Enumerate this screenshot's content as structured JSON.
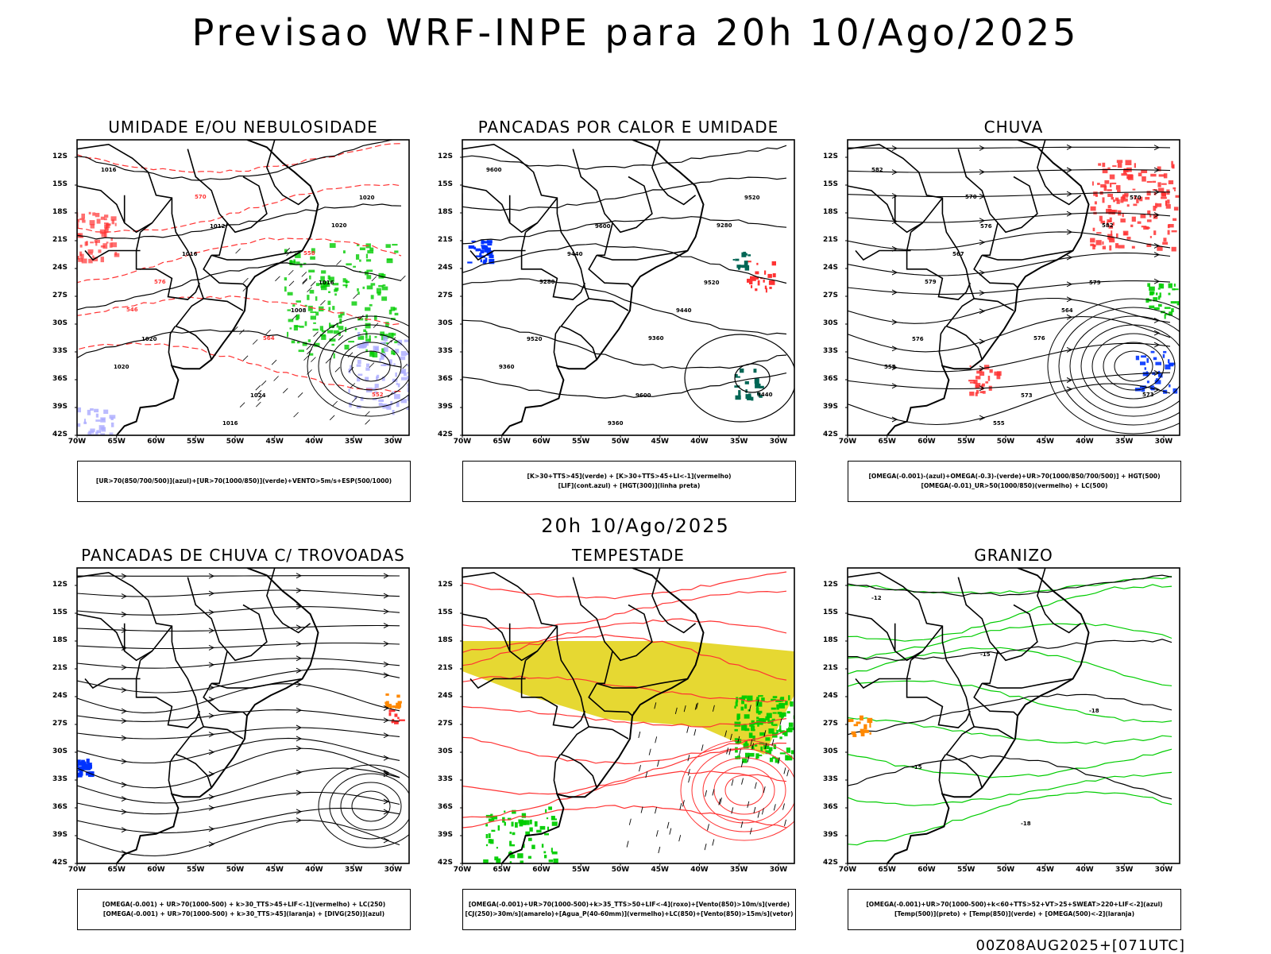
{
  "title": "Previsao WRF-INPE  para 20h 10/Ago/2025",
  "mid_title": "20h 10/Ago/2025",
  "footer": "00Z08AUG2025+[071UTC]",
  "lat_labels": [
    "12S",
    "15S",
    "18S",
    "21S",
    "24S",
    "27S",
    "30S",
    "33S",
    "36S",
    "39S",
    "42S"
  ],
  "lon_labels": [
    "70W",
    "65W",
    "60W",
    "55W",
    "50W",
    "45W",
    "40W",
    "35W",
    "30W"
  ],
  "panels": [
    {
      "id": "umidade",
      "title": "UMIDADE E/OU NEBULOSIDADE",
      "legend": [
        "[UR>70(850/700/500)](azul)+[UR>70(1000/850)](verde)+VENTO>5m/s+ESP(500/1000)"
      ],
      "contour_labels": [
        "1016",
        "1012",
        "1016",
        "1020",
        "1024",
        "1020",
        "1016",
        "1008",
        "1020",
        "1016",
        "1020",
        "576",
        "564",
        "552",
        "570",
        "558",
        "546"
      ],
      "colors": {
        "blue": "#aaaaff",
        "green": "#00cc00",
        "red": "#ff3333"
      }
    },
    {
      "id": "pancadas-calor",
      "title": "PANCADAS POR CALOR E UMIDADE",
      "legend": [
        "[K>30+TTS>45](verde) + [K>30+TTS>45+LI<-1](vermelho)",
        "[LIF](cont.azul) + [HGT(300)](linha preta)"
      ],
      "contour_labels": [
        "9600",
        "9600",
        "9520",
        "9520",
        "9600",
        "9520",
        "9440",
        "9440",
        "9360",
        "9360",
        "9280",
        "9280",
        "9360",
        "9440"
      ],
      "colors": {
        "dark_green": "#006655",
        "red": "#ff3333",
        "blue": "#0033ff"
      }
    },
    {
      "id": "chuva",
      "title": "CHUVA",
      "legend": [
        "[OMEGA(-0.001)-(azul)+OMEGA(-0.3)-(verde)+UR>70(1000/850/700/500)] + HGT(500)",
        "[OMEGA(-0.01)_UR>50(1000/850)(vermelho) + LC(500)"
      ],
      "contour_labels": [
        "582",
        "576",
        "579",
        "576",
        "573",
        "570",
        "567",
        "564",
        "558",
        "555",
        "582",
        "579",
        "576",
        "573",
        "570"
      ],
      "colors": {
        "red": "#ff3333",
        "green": "#00cc00",
        "blue": "#0033ff"
      }
    },
    {
      "id": "pancadas-trovoadas",
      "title": "PANCADAS DE CHUVA C/ TROVOADAS",
      "legend": [
        "[OMEGA(-0.001) + UR>70(1000-500) + k>30_TTS>45+LIF<-1](vermelho) + LC(250)",
        "[OMEGA(-0.001) + UR>70(1000-500) + k>30_TTS>45](laranja) + [DIVG(250)](azul)"
      ],
      "contour_labels": [],
      "colors": {
        "blue": "#0033ff",
        "orange": "#ff8800",
        "red": "#ff3333"
      }
    },
    {
      "id": "tempestade",
      "title": "TEMPESTADE",
      "legend": [
        "[OMEGA(-0.001)+UR>70(1000-500)+k>35_TTS>50+LIF<-4](roxo)+[Vento(850)>10m/s](verde)",
        "[CJ(250)>30m/s](amarelo)+[Agua_P(40-60mm)](vermelho)+LC(850)+[Vento(850)>15m/s](vetor)"
      ],
      "contour_labels": [],
      "colors": {
        "yellow": "#e6d832",
        "green": "#00cc00",
        "red": "#ff3333"
      }
    },
    {
      "id": "granizo",
      "title": "GRANIZO",
      "legend": [
        "[OMEGA(-0.001)+UR>70(1000-500)+k<60+TTS>52+VT>25+SWEAT>220+LIF<-2](azul)",
        "[Temp(500)](preto) + [Temp(850)](verde) + [OMEGA(500)<-2](laranja)"
      ],
      "contour_labels": [
        "-12",
        "-15",
        "-18",
        "-15",
        "-18"
      ],
      "colors": {
        "green": "#00cc00",
        "black": "#000000",
        "orange": "#ff8800"
      }
    }
  ]
}
